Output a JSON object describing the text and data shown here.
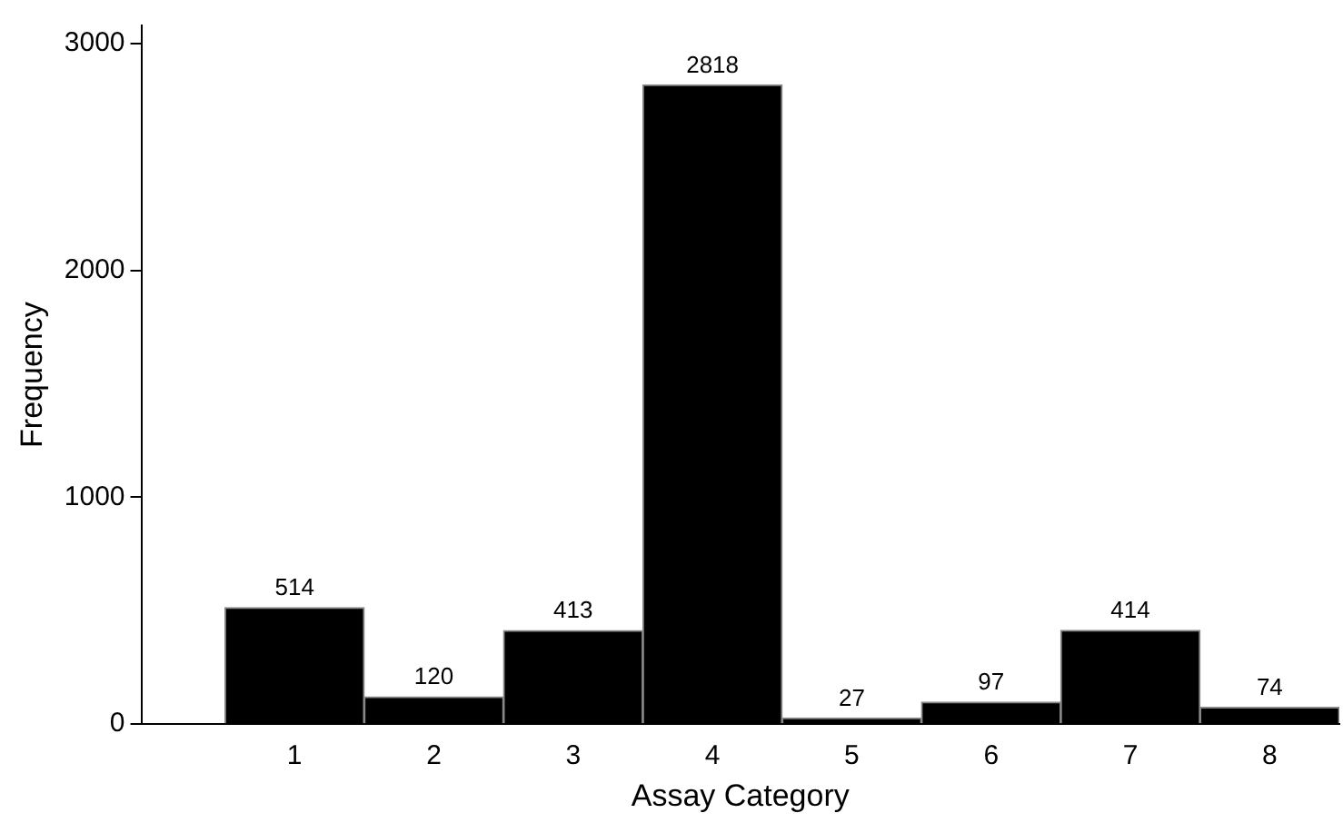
{
  "chart_data": {
    "type": "bar",
    "xlabel": "Assay Category",
    "ylabel": "Frequency",
    "x": [
      1,
      2,
      3,
      4,
      5,
      6,
      7,
      8
    ],
    "values": [
      514,
      120,
      413,
      2818,
      27,
      97,
      414,
      74
    ],
    "color": "#000000",
    "xlim": [
      -0.1,
      8.5
    ],
    "xticks": [
      1,
      2,
      3,
      4,
      5,
      6,
      7,
      8
    ],
    "ylim": [
      0,
      3080
    ],
    "yticks": [
      0,
      1000,
      2000,
      3000
    ],
    "grid": false,
    "legend": false,
    "data_labels": true
  }
}
